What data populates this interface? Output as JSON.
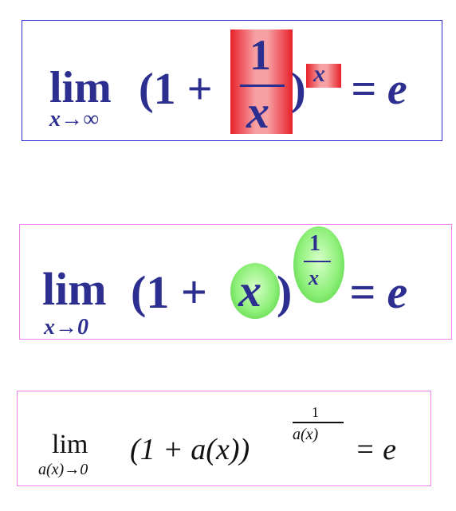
{
  "formula1": {
    "lim": "lim",
    "subscript": "x→∞",
    "open": "(1 +",
    "numerator": "1",
    "denominator": "x",
    "close": ")",
    "exponent": "x",
    "equals": "= e"
  },
  "formula2": {
    "lim": "lim",
    "subscript": "x→0",
    "open": "(1 +",
    "inner": "x",
    "close": ")",
    "exp_numerator": "1",
    "exp_denominator": "x",
    "equals": "= e"
  },
  "formula3": {
    "lim": "lim",
    "subscript": "a(x)→0",
    "body": "(1 + a(x))",
    "exp_numerator": "1",
    "exp_denominator": "a(x)",
    "equals": "= e"
  },
  "colors": {
    "formula_text": "#2c2f8f",
    "frame1_border": "#2a2ad6",
    "frame2_border": "#ee82ee",
    "frame3_border": "#ee82ee",
    "highlight_red": "#e8202a",
    "highlight_green": "#8ef07a"
  }
}
